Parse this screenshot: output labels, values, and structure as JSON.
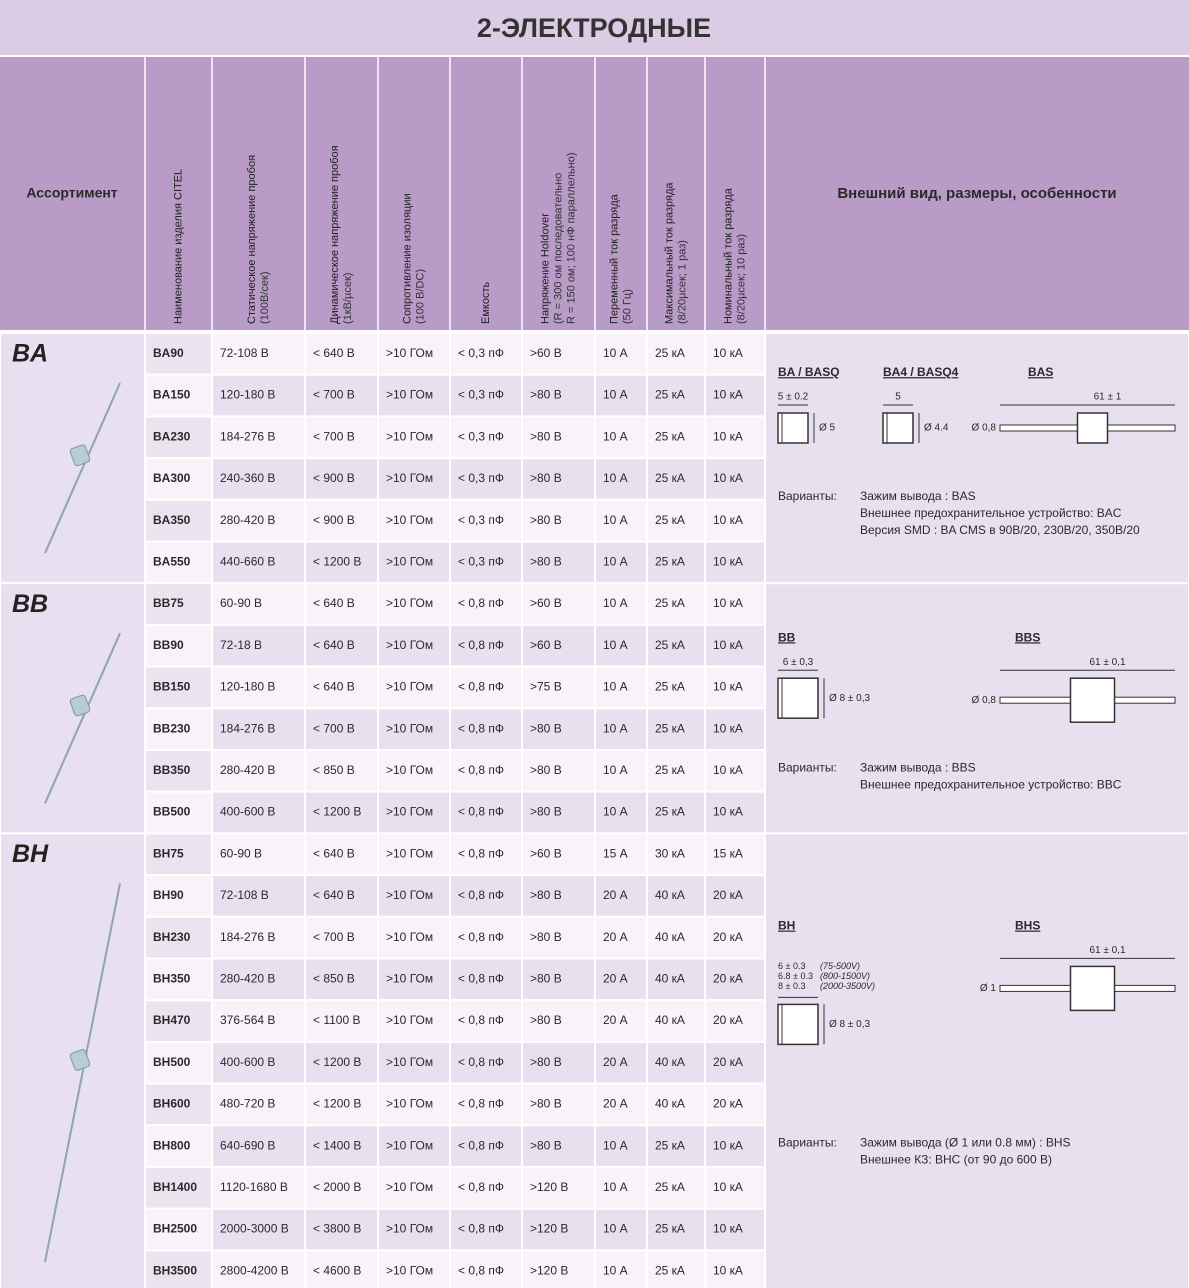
{
  "title": "2-ЭЛЕКТРОДНЫЕ",
  "header": {
    "assortment": "Ассортимент",
    "columns": [
      {
        "lines": [
          "Наименование изделия CITEL"
        ]
      },
      {
        "lines": [
          "Статическое напряжение пробоя",
          "(100В/сек)"
        ]
      },
      {
        "lines": [
          "Динамическое напряжение пробоя",
          "(1кВ/µсек)"
        ]
      },
      {
        "lines": [
          "Сопротивление изоляции",
          "(100 В/DC)"
        ]
      },
      {
        "lines": [
          "Емкость"
        ]
      },
      {
        "lines": [
          "Напряжение Holdover",
          "(R = 300 ом последовательно",
          "R = 150 ом; 100 нФ параллельно)"
        ]
      },
      {
        "lines": [
          "Переменный ток разряда",
          "(50 Гц)"
        ]
      },
      {
        "lines": [
          "Максимальный ток разряда",
          "(8/20µсек; 1 раз)"
        ]
      },
      {
        "lines": [
          "Номинальный ток разряда",
          "(8/20µсек; 10 раз)"
        ]
      }
    ],
    "description": "Внешний вид, размеры, особенности"
  },
  "groups": [
    {
      "name": "BA",
      "rows": [
        [
          "BA90",
          "72-108 В",
          "< 640 В",
          ">10 ГОм",
          "< 0,3 пФ",
          ">60 В",
          "10 А",
          "25 кА",
          "10 кА"
        ],
        [
          "BA150",
          "120-180 В",
          "< 700 В",
          ">10 ГОм",
          "< 0,3 пФ",
          ">80 В",
          "10 А",
          "25 кА",
          "10 кА"
        ],
        [
          "BA230",
          "184-276 В",
          "< 700 В",
          ">10 ГОм",
          "< 0,3 пФ",
          ">80 В",
          "10 А",
          "25 кА",
          "10 кА"
        ],
        [
          "BA300",
          "240-360 В",
          "< 900 В",
          ">10 ГОм",
          "< 0,3 пФ",
          ">80 В",
          "10 А",
          "25 кА",
          "10 кА"
        ],
        [
          "BA350",
          "280-420 В",
          "< 900 В",
          ">10 ГОм",
          "< 0,3 пФ",
          ">80 В",
          "10 А",
          "25 кА",
          "10 кА"
        ],
        [
          "BA550",
          "440-660 В",
          "< 1200 В",
          ">10 ГОм",
          "< 0,3 пФ",
          ">80 В",
          "10 А",
          "25 кА",
          "10 кА"
        ]
      ],
      "description": {
        "cases": [
          {
            "title": "BA / BASQ",
            "width": "5 ± 0.2",
            "diameter": "Ø 5"
          },
          {
            "title": "BA4 / BASQ4",
            "width": "5",
            "diameter": "Ø 4.4"
          }
        ],
        "axial": {
          "title": "BAS",
          "length": "61 ± 1",
          "diameter": "Ø 0,8"
        },
        "variants_label": "Варианты:",
        "variants": [
          "Зажим вывода : BAS",
          "Внешнее предохранительное устройство: BAC",
          "Версия SMD : BA CMS в 90В/20, 230В/20, 350В/20"
        ]
      }
    },
    {
      "name": "BB",
      "rows": [
        [
          "BB75",
          "60-90 В",
          "< 640 В",
          ">10 ГОм",
          "< 0,8 пФ",
          ">60 В",
          "10 А",
          "25 кА",
          "10 кА"
        ],
        [
          "BB90",
          "72-18 В",
          "< 640 В",
          ">10 ГОм",
          "< 0,8 пФ",
          ">60 В",
          "10 А",
          "25 кА",
          "10 кА"
        ],
        [
          "BB150",
          "120-180 В",
          "< 640 В",
          ">10 ГОм",
          "< 0,8 пФ",
          ">75 В",
          "10 А",
          "25 кА",
          "10 кА"
        ],
        [
          "BB230",
          "184-276 В",
          "< 700 В",
          ">10 ГОм",
          "< 0,8 пФ",
          ">80 В",
          "10 А",
          "25 кА",
          "10 кА"
        ],
        [
          "BB350",
          "280-420 В",
          "< 850 В",
          ">10 ГОм",
          "< 0,8 пФ",
          ">80 В",
          "10 А",
          "25 кА",
          "10 кА"
        ],
        [
          "BB500",
          "400-600 В",
          "< 1200 В",
          ">10 ГОм",
          "< 0,8 пФ",
          ">80 В",
          "10 А",
          "25 кА",
          "10 кА"
        ]
      ],
      "description": {
        "cases": [
          {
            "title": "BB",
            "width": "6 ± 0,3",
            "diameter": "Ø 8 ± 0,3"
          }
        ],
        "axial": {
          "title": "BBS",
          "length": "61 ± 0,1",
          "diameter": "Ø 0,8"
        },
        "variants_label": "Варианты:",
        "variants": [
          "Зажим вывода : BBS",
          "Внешнее предохранительное устройство: BBC"
        ]
      }
    },
    {
      "name": "BH",
      "rows": [
        [
          "BH75",
          "60-90 В",
          "< 640 В",
          ">10 ГОм",
          "< 0,8 пФ",
          ">60 В",
          "15 А",
          "30 кА",
          "15 кА"
        ],
        [
          "BH90",
          "72-108 В",
          "< 640 В",
          ">10 ГОм",
          "< 0,8 пФ",
          ">80 В",
          "20 А",
          "40 кА",
          "20 кА"
        ],
        [
          "BH230",
          "184-276 В",
          "< 700 В",
          ">10 ГОм",
          "< 0,8 пФ",
          ">80 В",
          "20 А",
          "40 кА",
          "20 кА"
        ],
        [
          "BH350",
          "280-420 В",
          "< 850 В",
          ">10 ГОм",
          "< 0,8 пФ",
          ">80 В",
          "20 А",
          "40 кА",
          "20 кА"
        ],
        [
          "BH470",
          "376-564 В",
          "< 1100 В",
          ">10 ГОм",
          "< 0,8 пФ",
          ">80 В",
          "20 А",
          "40 кА",
          "20 кА"
        ],
        [
          "BH500",
          "400-600 В",
          "< 1200 В",
          ">10 ГОм",
          "< 0,8 пФ",
          ">80 В",
          "20 А",
          "40 кА",
          "20 кА"
        ],
        [
          "BH600",
          "480-720 В",
          "< 1200 В",
          ">10 ГОм",
          "< 0,8 пФ",
          ">80 В",
          "20 А",
          "40 кА",
          "20 кА"
        ],
        [
          "BH800",
          "640-690 В",
          "< 1400 В",
          ">10 ГОм",
          "< 0,8 пФ",
          ">80 В",
          "10 А",
          "25 кА",
          "10 кА"
        ],
        [
          "BH1400",
          "1120-1680 В",
          "< 2000 В",
          ">10 ГОм",
          "< 0,8 пФ",
          ">120 В",
          "10 А",
          "25 кА",
          "10 кА"
        ],
        [
          "BH2500",
          "2000-3000 В",
          "< 3800 В",
          ">10 ГОм",
          "< 0,8 пФ",
          ">120 В",
          "10 А",
          "25 кА",
          "10 кА"
        ],
        [
          "BH3500",
          "2800-4200 В",
          "< 4600 В",
          ">10 ГОм",
          "< 0,8 пФ",
          ">120 В",
          "10 А",
          "25 кА",
          "10 кА"
        ]
      ],
      "description": {
        "cases": [
          {
            "title": "BH",
            "widths": [
              {
                "dim": "6 ± 0.3",
                "range": "(75-500V)"
              },
              {
                "dim": "6.8 ± 0.3",
                "range": "(800-1500V)"
              },
              {
                "dim": "8 ± 0.3",
                "range": "(2000-3500V)"
              }
            ],
            "diameter": "Ø 8 ± 0,3"
          }
        ],
        "axial": {
          "title": "BHS",
          "length": "61 ± 0,1",
          "diameter": "Ø 1"
        },
        "variants_label": "Варианты:",
        "variants": [
          "Зажим вывода (Ø 1 или 0.8 мм) : BHS",
          "Внешнее КЗ: BHC (от 90 до 600 В)"
        ]
      }
    }
  ]
}
